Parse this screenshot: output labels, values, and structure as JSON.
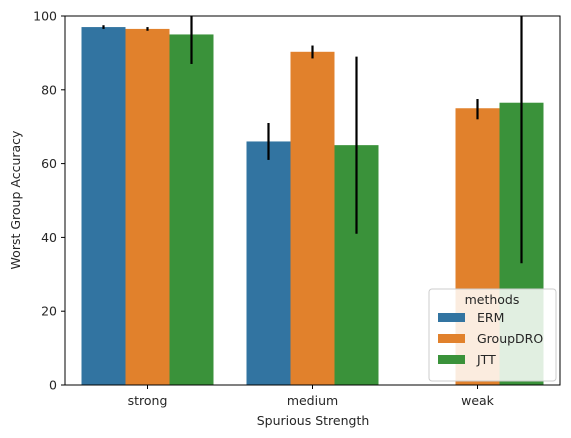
{
  "chart_data": {
    "type": "bar",
    "title": "",
    "xlabel": "Spurious Strength",
    "ylabel": "Worst Group Accuracy",
    "ylim": [
      0,
      100
    ],
    "yticks": [
      0,
      20,
      40,
      60,
      80,
      100
    ],
    "categories": [
      "strong",
      "medium",
      "weak"
    ],
    "series": [
      {
        "name": "ERM",
        "color": "#3274a1",
        "values": [
          97.0,
          66.0,
          null
        ],
        "err_low": [
          96.5,
          61.0,
          null
        ],
        "err_high": [
          97.5,
          71.0,
          null
        ]
      },
      {
        "name": "GroupDRO",
        "color": "#e1812c",
        "values": [
          96.5,
          90.3,
          75.0
        ],
        "err_low": [
          96.0,
          88.5,
          72.0
        ],
        "err_high": [
          97.0,
          92.0,
          77.5
        ]
      },
      {
        "name": "JTT",
        "color": "#3a923a",
        "values": [
          95.0,
          65.0,
          76.5
        ],
        "err_low": [
          87.0,
          41.0,
          33.0
        ],
        "err_high": [
          100.0,
          89.0,
          100.0
        ]
      }
    ],
    "legend": {
      "title": "methods",
      "placement": "lower-right"
    },
    "grid": false
  }
}
